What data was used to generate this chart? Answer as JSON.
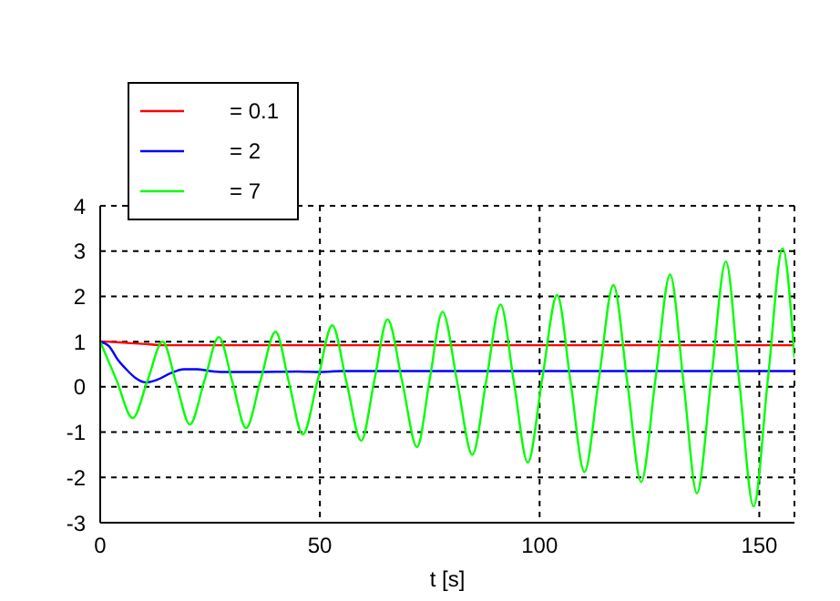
{
  "chart_data": {
    "type": "line",
    "xlabel": "t [s]",
    "xlim": [
      0,
      158
    ],
    "xticks": [
      0,
      50,
      100,
      150
    ],
    "ylim": [
      -3,
      4
    ],
    "yticks": [
      -3,
      -2,
      -1,
      0,
      1,
      2,
      3,
      4
    ],
    "grid": true,
    "legend": "top left",
    "marker": "none",
    "line_style": "solid",
    "series": [
      {
        "name": "= 0.1",
        "color": "#ff0000",
        "x": [
          0,
          0.7,
          6.2,
          9.7,
          15.2,
          158
        ],
        "values": [
          1,
          1,
          0.97,
          0.95,
          0.92,
          0.92
        ]
      },
      {
        "name": "= 2",
        "color": "#0000ff",
        "x": [
          0,
          2,
          4,
          6,
          8,
          10.4,
          13,
          16,
          19,
          22,
          25,
          28,
          35,
          45,
          50,
          55,
          158
        ],
        "values": [
          1,
          0.9,
          0.6,
          0.38,
          0.2,
          0.1,
          0.16,
          0.3,
          0.39,
          0.39,
          0.35,
          0.33,
          0.33,
          0.34,
          0.33,
          0.35,
          0.35
        ]
      },
      {
        "name": "= 7",
        "color": "#00ff00",
        "x": [
          0,
          3.7,
          7.4,
          10.8,
          14.2,
          17.3,
          20.4,
          23.7,
          27,
          30.1,
          33.2,
          36.5,
          39.9,
          43,
          46.1,
          49.5,
          52.8,
          56.1,
          59.4,
          62.4,
          65.4,
          68.8,
          72.1,
          75,
          77.9,
          81.3,
          84.7,
          87.9,
          91.1,
          94.2,
          97.3,
          100.6,
          104,
          107.1,
          110.2,
          113.5,
          116.8,
          120,
          123.1,
          126.4,
          129.7,
          132.8,
          135.8,
          139.1,
          142.4,
          145.5,
          148.7,
          152,
          155.3,
          158
        ],
        "values": [
          1,
          0.15,
          -0.69,
          0.15,
          1.0,
          0.08,
          -0.83,
          0.13,
          1.1,
          0.1,
          -0.91,
          0.15,
          1.22,
          0.08,
          -1.05,
          0.15,
          1.36,
          0.08,
          -1.19,
          0.15,
          1.49,
          0.08,
          -1.33,
          0.17,
          1.66,
          0.08,
          -1.5,
          0.16,
          1.82,
          0.07,
          -1.67,
          0.18,
          2.03,
          0.07,
          -1.88,
          0.18,
          2.25,
          0.07,
          -2.1,
          0.19,
          2.48,
          0.06,
          -2.35,
          0.21,
          2.77,
          0.06,
          -2.64,
          0.21,
          3.06,
          0.65
        ]
      }
    ]
  }
}
